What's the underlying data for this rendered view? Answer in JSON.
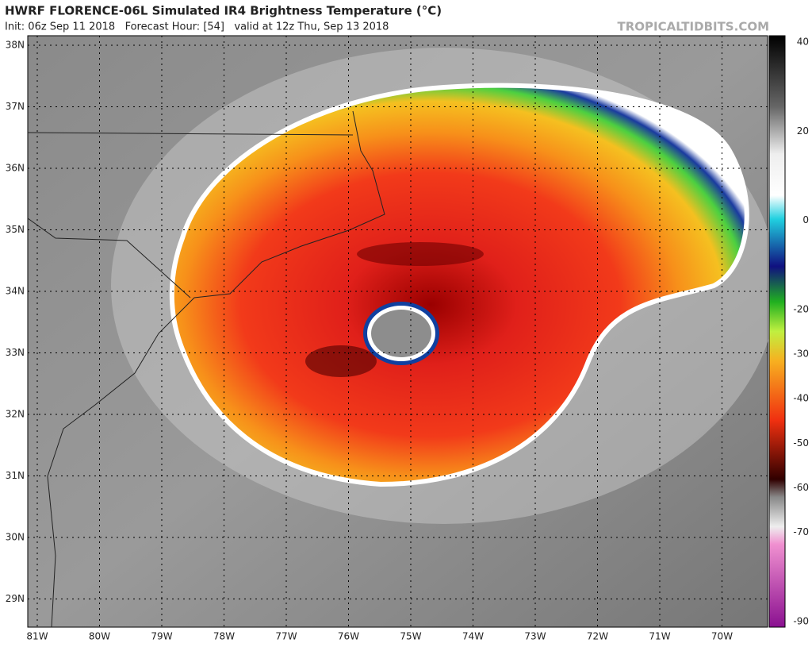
{
  "header": {
    "title": "HWRF FLORENCE-06L Simulated IR4 Brightness Temperature (°C)",
    "subtitle": "Init: 06z Sep 11 2018   Forecast Hour: [54]   valid at 12z Thu, Sep 13 2018",
    "credit": "TROPICALTIDBITS.COM"
  },
  "map": {
    "lat_labels": [
      "38N",
      "37N",
      "36N",
      "35N",
      "34N",
      "33N",
      "32N",
      "31N",
      "30N",
      "29N"
    ],
    "lon_labels": [
      "81W",
      "80W",
      "79W",
      "78W",
      "77W",
      "76W",
      "75W",
      "74W",
      "73W",
      "72W",
      "71W",
      "70W"
    ]
  },
  "colorbar": {
    "labels": [
      40,
      20,
      0,
      -20,
      -30,
      -40,
      -50,
      -60,
      -70,
      -90
    ]
  }
}
